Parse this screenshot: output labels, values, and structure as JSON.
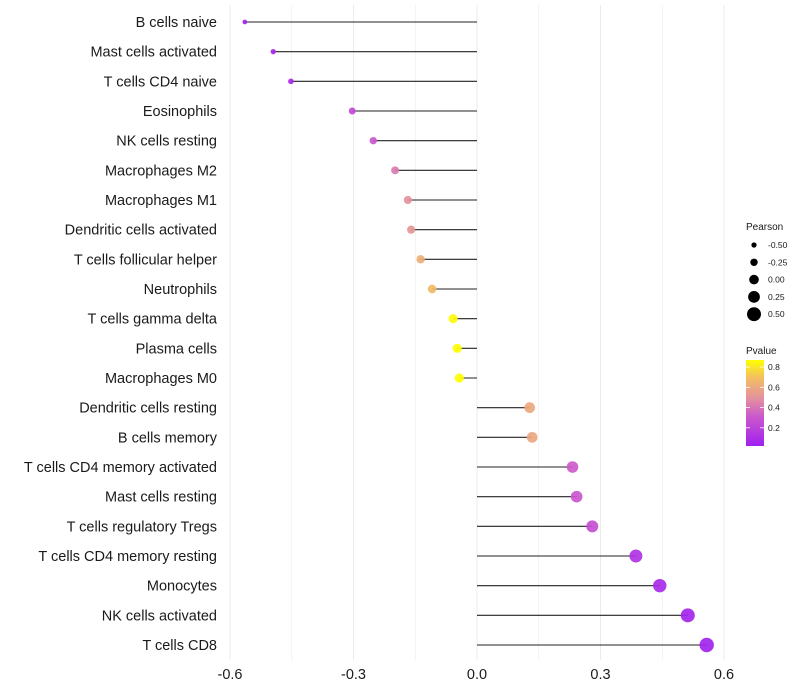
{
  "chart_data": {
    "type": "lollipop",
    "title": "",
    "xlabel": "",
    "ylabel": "",
    "xlim": [
      -0.6,
      0.6
    ],
    "x_ticks": [
      "-0.6",
      "-0.3",
      "0.0",
      "0.3",
      "0.6"
    ],
    "x_tick_values": [
      -0.6,
      -0.3,
      0.0,
      0.3,
      0.6
    ],
    "grid": true,
    "categories": [
      "B cells naive",
      "Mast cells activated",
      "T cells CD4 naive",
      "Eosinophils",
      "NK cells resting",
      "Macrophages M2",
      "Macrophages M1",
      "Dendritic cells activated",
      "T cells follicular helper",
      "Neutrophils",
      "T cells gamma delta",
      "Plasma cells",
      "Macrophages M0",
      "Dendritic cells resting",
      "B cells memory",
      "T cells CD4 memory activated",
      "Mast cells resting",
      "T cells regulatory  Tregs ",
      "T cells CD4 memory resting",
      "Monocytes",
      "NK cells activated",
      "T cells CD8"
    ],
    "pearson": [
      -0.564,
      -0.495,
      -0.452,
      -0.303,
      -0.252,
      -0.199,
      -0.168,
      -0.16,
      -0.137,
      -0.109,
      -0.058,
      -0.048,
      -0.043,
      0.128,
      0.134,
      0.232,
      0.242,
      0.28,
      0.386,
      0.444,
      0.512,
      0.558
    ],
    "pvalue": [
      0.03,
      0.05,
      0.07,
      0.24,
      0.3,
      0.42,
      0.5,
      0.52,
      0.62,
      0.68,
      0.86,
      0.87,
      0.88,
      0.6,
      0.59,
      0.32,
      0.3,
      0.26,
      0.12,
      0.08,
      0.05,
      0.04
    ],
    "legend": {
      "placement": "right",
      "size": {
        "title": "Pearson",
        "labels": [
          "-0.50",
          "-0.25",
          "0.00",
          "0.25",
          "0.50"
        ],
        "values": [
          -0.5,
          -0.25,
          0.0,
          0.25,
          0.5
        ]
      },
      "color": {
        "title": "Pvalue",
        "labels": [
          "0.8",
          "0.6",
          "0.4",
          "0.2"
        ],
        "values": [
          0.8,
          0.6,
          0.4,
          0.2
        ],
        "range": [
          0.02,
          0.87
        ],
        "low_color": "#A020F0",
        "mid_color": "#E08AA8",
        "high_color": "#FFFF00"
      }
    }
  }
}
